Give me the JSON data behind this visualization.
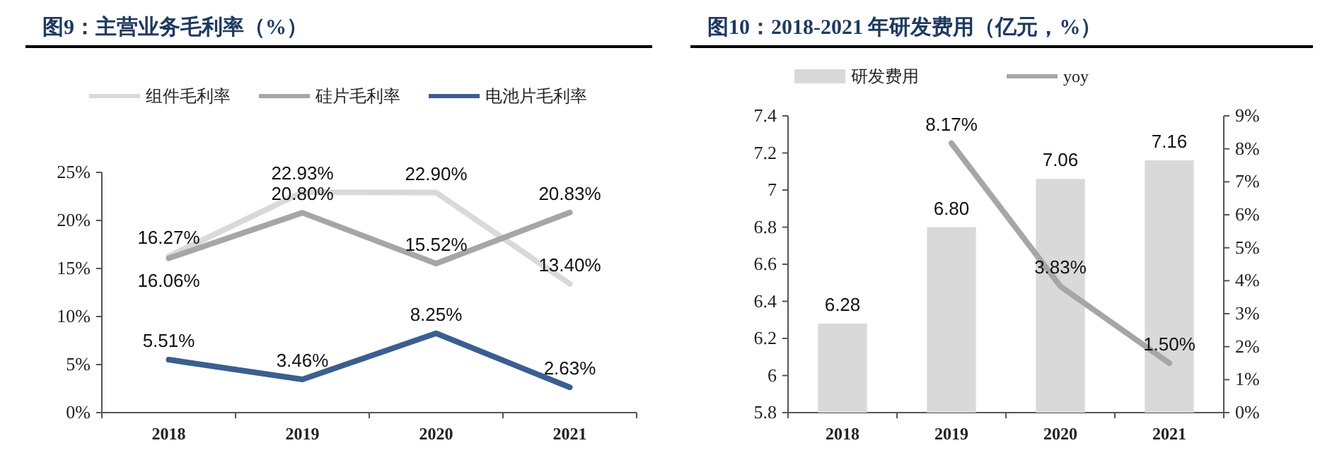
{
  "chart_data": [
    {
      "type": "line",
      "title": "图9：主营业务毛利率（%）",
      "categories": [
        "2018",
        "2019",
        "2020",
        "2021"
      ],
      "series": [
        {
          "name": "组件毛利率",
          "color": "#d9d9d9",
          "values": [
            16.27,
            22.93,
            22.9,
            13.4
          ],
          "value_labels": [
            "16.27%",
            "22.93%",
            "22.90%",
            "13.40%"
          ]
        },
        {
          "name": "硅片毛利率",
          "color": "#a6a6a6",
          "values": [
            16.06,
            20.8,
            15.52,
            20.83
          ],
          "value_labels": [
            "16.06%",
            "20.80%",
            "15.52%",
            "20.83%"
          ]
        },
        {
          "name": "电池片毛利率",
          "color": "#3a5f8f",
          "values": [
            5.51,
            3.46,
            8.25,
            2.63
          ],
          "value_labels": [
            "5.51%",
            "3.46%",
            "8.25%",
            "2.63%"
          ]
        }
      ],
      "ylim": [
        0,
        25
      ],
      "yticks": [
        {
          "value": 0,
          "label": "0%"
        },
        {
          "value": 5,
          "label": "5%"
        },
        {
          "value": 10,
          "label": "10%"
        },
        {
          "value": 15,
          "label": "15%"
        },
        {
          "value": 20,
          "label": "20%"
        },
        {
          "value": 25,
          "label": "25%"
        }
      ],
      "legend": "top"
    },
    {
      "type": "bar",
      "title": "图10：2018-2021 年研发费用（亿元，%）",
      "categories": [
        "2018",
        "2019",
        "2020",
        "2021"
      ],
      "series": [
        {
          "name": "研发费用",
          "color": "#d9d9d9",
          "values": [
            6.28,
            6.8,
            7.06,
            7.16
          ],
          "value_labels": [
            "6.28",
            "6.80",
            "7.06",
            "7.16"
          ]
        },
        {
          "name": "yoy",
          "type": "line",
          "axis": "y2",
          "color": "#a6a6a6",
          "values": [
            null,
            8.17,
            3.83,
            1.5
          ],
          "value_labels": [
            null,
            "8.17%",
            "3.83%",
            "1.50%"
          ]
        }
      ],
      "ylim": [
        5.8,
        7.4
      ],
      "yticks": [
        5.8,
        6,
        6.2,
        6.4,
        6.6,
        6.8,
        7,
        7.2,
        7.4
      ],
      "y2lim": [
        0,
        9
      ],
      "y2ticks": [
        {
          "value": 0,
          "label": "0%"
        },
        {
          "value": 1,
          "label": "1%"
        },
        {
          "value": 2,
          "label": "2%"
        },
        {
          "value": 3,
          "label": "3%"
        },
        {
          "value": 4,
          "label": "4%"
        },
        {
          "value": 5,
          "label": "5%"
        },
        {
          "value": 6,
          "label": "6%"
        },
        {
          "value": 7,
          "label": "7%"
        },
        {
          "value": 8,
          "label": "8%"
        },
        {
          "value": 9,
          "label": "9%"
        }
      ],
      "legend": "top"
    }
  ]
}
